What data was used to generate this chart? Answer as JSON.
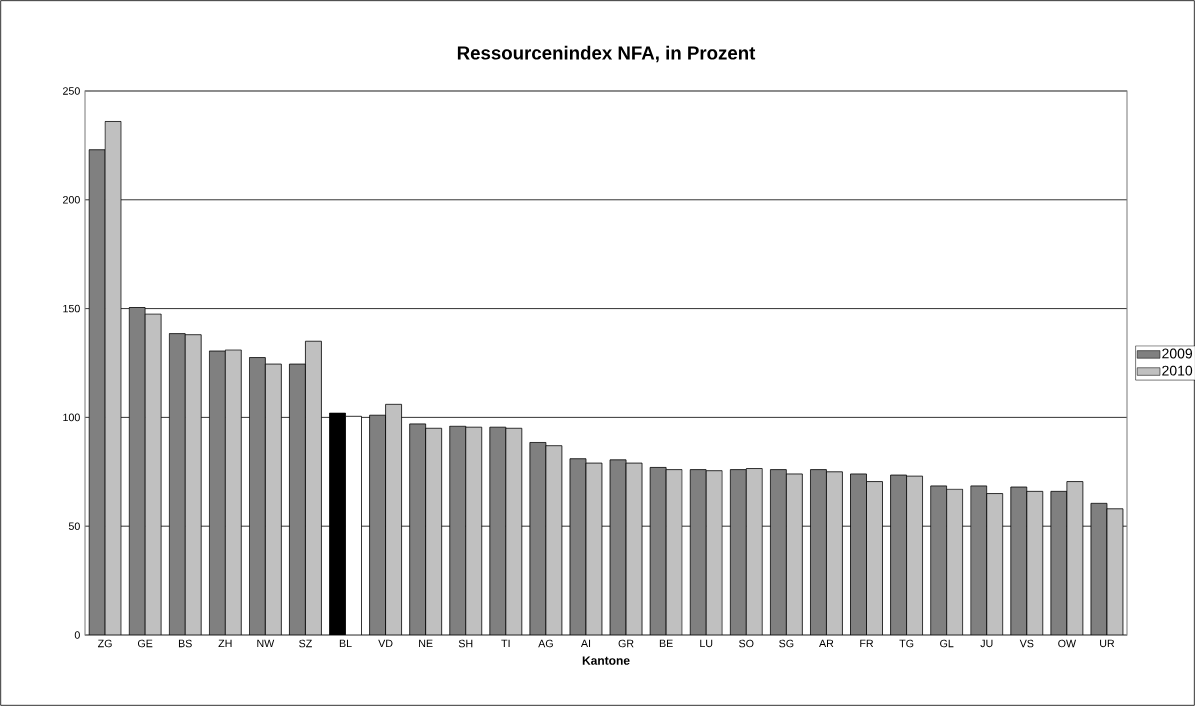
{
  "chart_data": {
    "type": "bar",
    "title": "Ressourcenindex NFA, in Prozent",
    "xlabel": "Kantone",
    "categories": [
      "ZG",
      "GE",
      "BS",
      "ZH",
      "NW",
      "SZ",
      "BL",
      "VD",
      "NE",
      "SH",
      "TI",
      "AG",
      "AI",
      "GR",
      "BE",
      "LU",
      "SO",
      "SG",
      "AR",
      "FR",
      "TG",
      "GL",
      "JU",
      "VS",
      "OW",
      "UR"
    ],
    "series": [
      {
        "name": "2009",
        "color": "#808080",
        "colors": [
          "#808080",
          "#808080",
          "#808080",
          "#808080",
          "#808080",
          "#808080",
          "#000000",
          "#808080",
          "#808080",
          "#808080",
          "#808080",
          "#808080",
          "#808080",
          "#808080",
          "#808080",
          "#808080",
          "#808080",
          "#808080",
          "#808080",
          "#808080",
          "#808080",
          "#808080",
          "#808080",
          "#808080",
          "#808080",
          "#808080"
        ],
        "values": [
          223,
          150.5,
          138.5,
          130.5,
          127.5,
          124.5,
          102,
          101,
          97,
          96,
          95.5,
          88.5,
          81,
          80.5,
          77,
          76,
          76,
          76,
          76,
          74,
          73.5,
          68.5,
          68.5,
          68,
          66,
          60.5
        ]
      },
      {
        "name": "2010",
        "color": "#c0c0c0",
        "colors": [
          "#c0c0c0",
          "#c0c0c0",
          "#c0c0c0",
          "#c0c0c0",
          "#c0c0c0",
          "#c0c0c0",
          "#ffffff",
          "#c0c0c0",
          "#c0c0c0",
          "#c0c0c0",
          "#c0c0c0",
          "#c0c0c0",
          "#c0c0c0",
          "#c0c0c0",
          "#c0c0c0",
          "#c0c0c0",
          "#c0c0c0",
          "#c0c0c0",
          "#c0c0c0",
          "#c0c0c0",
          "#c0c0c0",
          "#c0c0c0",
          "#c0c0c0",
          "#c0c0c0",
          "#c0c0c0",
          "#c0c0c0"
        ],
        "values": [
          236,
          147.5,
          138,
          131,
          124.5,
          135,
          100.5,
          106,
          95,
          95.5,
          95,
          87,
          79,
          79,
          76,
          75.5,
          76.5,
          74,
          75,
          70.5,
          73,
          67,
          65,
          66,
          70.5,
          58
        ]
      }
    ],
    "ylim": [
      0,
      250
    ],
    "yticks": [
      0,
      50,
      100,
      150,
      200,
      250
    ],
    "grid": "y",
    "legend": "right"
  }
}
